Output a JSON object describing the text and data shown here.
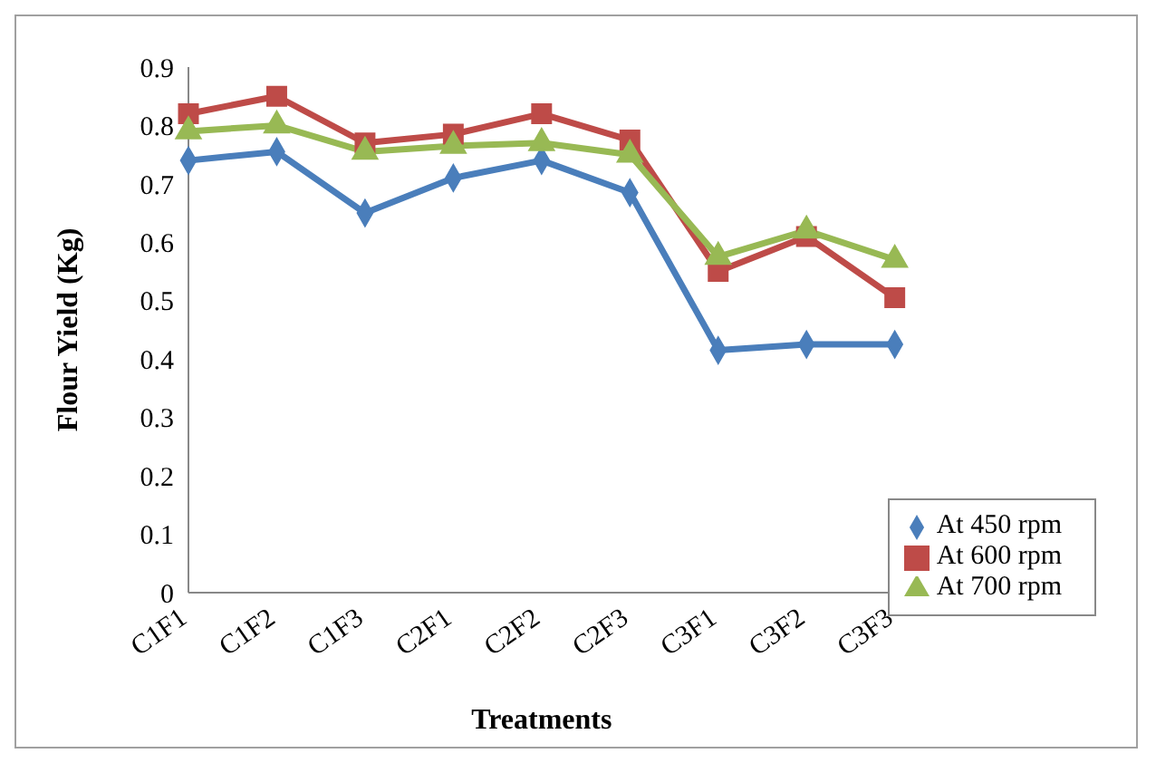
{
  "chart_data": {
    "type": "line",
    "xlabel": "Treatments",
    "ylabel": "Flour Yield (Kg)",
    "categories": [
      "C1F1",
      "C1F2",
      "C1F3",
      "C2F1",
      "C2F2",
      "C2F3",
      "C3F1",
      "C3F2",
      "C3F3"
    ],
    "series": [
      {
        "name": "At 450 rpm",
        "color": "#4a7ebb",
        "marker": "diamond",
        "values": [
          0.74,
          0.755,
          0.65,
          0.71,
          0.74,
          0.685,
          0.415,
          0.425,
          0.425
        ]
      },
      {
        "name": "At 600 rpm",
        "color": "#be4b48",
        "marker": "square",
        "values": [
          0.82,
          0.85,
          0.77,
          0.785,
          0.82,
          0.775,
          0.55,
          0.61,
          0.505
        ]
      },
      {
        "name": "At 700 rpm",
        "color": "#98b954",
        "marker": "triangle",
        "values": [
          0.79,
          0.8,
          0.755,
          0.765,
          0.77,
          0.75,
          0.575,
          0.62,
          0.57
        ]
      }
    ],
    "ylim": [
      0,
      0.9
    ],
    "yticks": [
      0,
      0.1,
      0.2,
      0.3,
      0.4,
      0.5,
      0.6,
      0.7,
      0.8,
      0.9
    ],
    "grid": false,
    "legend": "bottom right",
    "line_style": "solid"
  }
}
